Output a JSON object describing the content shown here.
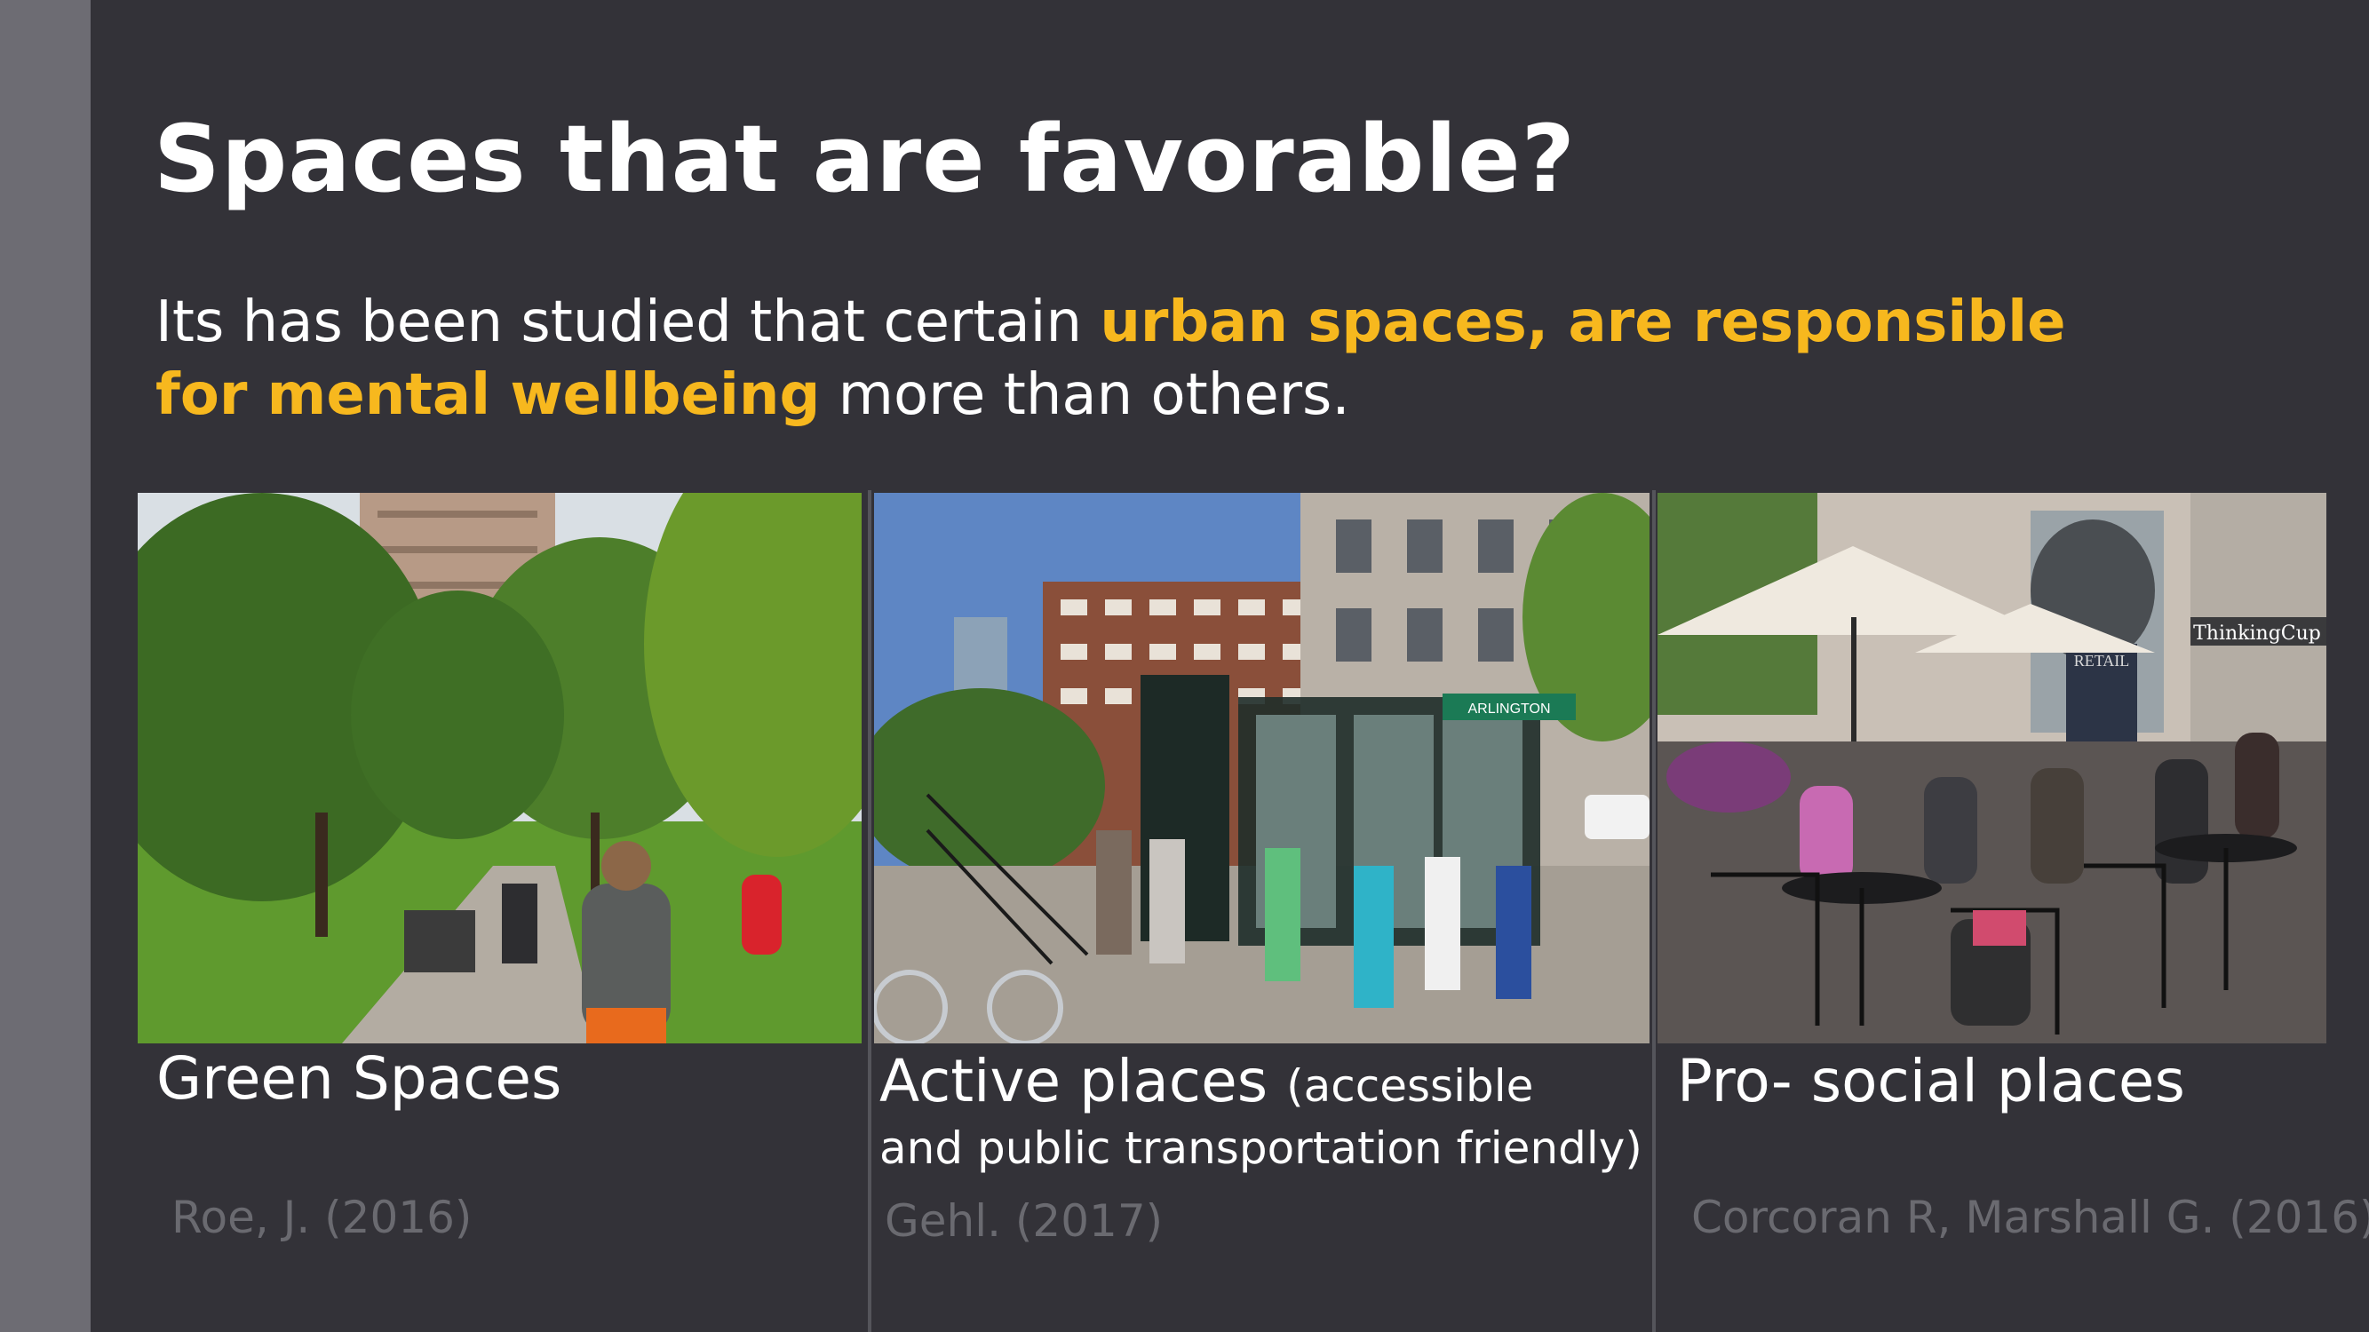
{
  "slide": {
    "title": "Spaces that are favorable?",
    "subtitle": {
      "part1": "Its has been studied that certain ",
      "highlight": "urban spaces, are responsible for mental wellbeing",
      "part2": " more than others."
    },
    "highlight_color": "#f7b81e",
    "panels": [
      {
        "caption": "Green Spaces",
        "caption_note": "",
        "citation": "Roe, J. (2016)",
        "image_icon": "park-photo"
      },
      {
        "caption": "Active places",
        "caption_note": "(accessible",
        "caption_note_line2": "and public transportation friendly)",
        "citation": "Gehl. (2017)",
        "image_icon": "transit-street-photo",
        "sign_text": "ARLINGTON"
      },
      {
        "caption": "Pro- social places",
        "caption_note": "",
        "citation": "Corcoran R, Marshall G. (2016)",
        "image_icon": "cafe-photo",
        "sign_text": "ThinkingCup",
        "sign_text2": "RETAIL"
      }
    ]
  }
}
